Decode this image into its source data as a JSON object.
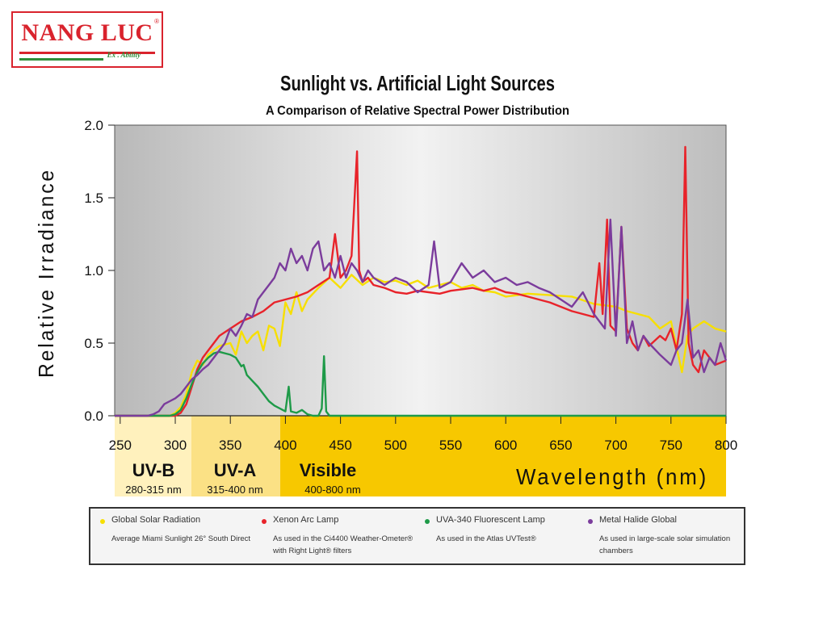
{
  "logo": {
    "brand": "NANG LUC",
    "tagline": "Ex . Ability",
    "registered": "®"
  },
  "chart_data": {
    "type": "line",
    "title": "Sunlight vs. Artificial Light Sources",
    "subtitle": "A Comparison of Relative Spectral Power Distribution",
    "xlabel": "Wavelength (nm)",
    "ylabel": "Relative Irradiance",
    "xlim": [
      245,
      800
    ],
    "ylim": [
      0,
      2.0
    ],
    "xticks": [
      250,
      300,
      350,
      400,
      450,
      500,
      550,
      600,
      650,
      700,
      750,
      800
    ],
    "yticks": [
      "0.0",
      "0.5",
      "1.0",
      "1.5",
      "2.0"
    ],
    "bands": [
      {
        "name": "UV-B",
        "range": "280-315 nm"
      },
      {
        "name": "UV-A",
        "range": "315-400 nm"
      },
      {
        "name": "Visible",
        "range": "400-800 nm"
      }
    ],
    "series": [
      {
        "name": "Global Solar Radiation",
        "color": "#f7df00",
        "x": [
          245,
          280,
          290,
          295,
          300,
          305,
          310,
          315,
          320,
          325,
          330,
          340,
          350,
          355,
          360,
          365,
          370,
          375,
          380,
          385,
          390,
          395,
          400,
          405,
          410,
          415,
          420,
          430,
          440,
          450,
          460,
          470,
          480,
          490,
          500,
          510,
          520,
          530,
          540,
          550,
          560,
          570,
          580,
          590,
          600,
          620,
          640,
          660,
          680,
          700,
          710,
          720,
          730,
          740,
          750,
          760,
          765,
          770,
          780,
          790,
          800
        ],
        "y": [
          0,
          0,
          0,
          0,
          0.02,
          0.06,
          0.15,
          0.3,
          0.38,
          0.35,
          0.42,
          0.48,
          0.5,
          0.42,
          0.58,
          0.5,
          0.55,
          0.58,
          0.45,
          0.62,
          0.6,
          0.48,
          0.78,
          0.7,
          0.85,
          0.72,
          0.8,
          0.88,
          0.95,
          0.88,
          0.97,
          0.9,
          0.95,
          0.92,
          0.93,
          0.9,
          0.93,
          0.88,
          0.9,
          0.92,
          0.88,
          0.9,
          0.86,
          0.85,
          0.82,
          0.84,
          0.83,
          0.82,
          0.77,
          0.75,
          0.72,
          0.7,
          0.68,
          0.6,
          0.65,
          0.3,
          0.55,
          0.6,
          0.65,
          0.6,
          0.58
        ]
      },
      {
        "name": "Xenon Arc Lamp",
        "color": "#e8232a",
        "x": [
          245,
          290,
          295,
          300,
          305,
          310,
          315,
          320,
          325,
          330,
          340,
          350,
          360,
          370,
          380,
          390,
          400,
          410,
          420,
          430,
          440,
          445,
          450,
          455,
          460,
          465,
          467,
          470,
          475,
          480,
          490,
          500,
          510,
          520,
          530,
          540,
          550,
          560,
          570,
          580,
          590,
          600,
          610,
          620,
          630,
          640,
          650,
          660,
          670,
          680,
          685,
          688,
          692,
          695,
          700,
          705,
          710,
          715,
          720,
          725,
          730,
          740,
          745,
          750,
          755,
          760,
          763,
          766,
          770,
          775,
          780,
          790,
          800
        ],
        "y": [
          0,
          0,
          0,
          0,
          0.02,
          0.08,
          0.2,
          0.32,
          0.4,
          0.45,
          0.55,
          0.6,
          0.65,
          0.68,
          0.72,
          0.78,
          0.8,
          0.82,
          0.85,
          0.9,
          0.95,
          1.25,
          0.95,
          1.0,
          1.1,
          1.82,
          1.0,
          0.92,
          0.95,
          0.9,
          0.88,
          0.85,
          0.84,
          0.86,
          0.85,
          0.84,
          0.86,
          0.87,
          0.88,
          0.86,
          0.88,
          0.85,
          0.84,
          0.82,
          0.8,
          0.78,
          0.75,
          0.72,
          0.7,
          0.68,
          1.05,
          0.7,
          1.35,
          0.62,
          0.58,
          1.3,
          0.6,
          0.5,
          0.45,
          0.55,
          0.48,
          0.55,
          0.52,
          0.6,
          0.45,
          0.7,
          1.85,
          0.5,
          0.35,
          0.3,
          0.45,
          0.35,
          0.38
        ]
      },
      {
        "name": "UVA-340 Fluorescent Lamp",
        "color": "#1e9a48",
        "x": [
          245,
          295,
          300,
          305,
          310,
          315,
          320,
          325,
          330,
          335,
          340,
          345,
          350,
          355,
          360,
          362,
          365,
          370,
          375,
          380,
          385,
          390,
          395,
          400,
          403,
          405,
          410,
          415,
          420,
          425,
          430,
          433,
          435,
          437,
          440,
          450,
          800
        ],
        "y": [
          0,
          0,
          0.01,
          0.04,
          0.12,
          0.22,
          0.3,
          0.36,
          0.4,
          0.43,
          0.44,
          0.43,
          0.42,
          0.4,
          0.34,
          0.35,
          0.28,
          0.24,
          0.2,
          0.15,
          0.1,
          0.07,
          0.05,
          0.03,
          0.2,
          0.03,
          0.02,
          0.04,
          0.01,
          0.0,
          0.0,
          0.05,
          0.41,
          0.03,
          0.0,
          0.0,
          0.0
        ]
      },
      {
        "name": "Metal Halide Global",
        "color": "#7b3c9c",
        "x": [
          245,
          275,
          280,
          285,
          290,
          295,
          300,
          305,
          310,
          315,
          320,
          325,
          330,
          335,
          340,
          345,
          350,
          355,
          360,
          365,
          370,
          375,
          380,
          385,
          390,
          395,
          400,
          405,
          410,
          415,
          420,
          425,
          430,
          435,
          440,
          445,
          450,
          455,
          460,
          465,
          470,
          475,
          480,
          490,
          500,
          510,
          520,
          530,
          535,
          540,
          550,
          560,
          570,
          580,
          590,
          600,
          610,
          620,
          630,
          640,
          650,
          660,
          670,
          680,
          690,
          695,
          700,
          705,
          710,
          715,
          720,
          725,
          730,
          740,
          750,
          755,
          760,
          765,
          770,
          775,
          780,
          785,
          790,
          795,
          800
        ],
        "y": [
          0,
          0,
          0.01,
          0.03,
          0.08,
          0.1,
          0.12,
          0.15,
          0.2,
          0.25,
          0.28,
          0.32,
          0.35,
          0.4,
          0.45,
          0.5,
          0.6,
          0.55,
          0.62,
          0.7,
          0.68,
          0.8,
          0.85,
          0.9,
          0.95,
          1.05,
          1.0,
          1.15,
          1.05,
          1.1,
          1.0,
          1.15,
          1.2,
          1.0,
          1.05,
          0.95,
          1.1,
          0.95,
          1.05,
          1.0,
          0.92,
          1.0,
          0.95,
          0.9,
          0.95,
          0.92,
          0.85,
          0.9,
          1.2,
          0.88,
          0.92,
          1.05,
          0.95,
          1.0,
          0.92,
          0.95,
          0.9,
          0.92,
          0.88,
          0.85,
          0.8,
          0.75,
          0.85,
          0.7,
          0.6,
          1.35,
          0.55,
          1.3,
          0.5,
          0.65,
          0.45,
          0.55,
          0.5,
          0.42,
          0.35,
          0.45,
          0.5,
          0.8,
          0.4,
          0.45,
          0.3,
          0.4,
          0.35,
          0.5,
          0.38
        ]
      }
    ]
  },
  "legend": {
    "items": [
      {
        "name": "Global Solar Radiation",
        "desc": "Average Miami Sunlight 26° South Direct",
        "color": "#f7df00"
      },
      {
        "name": "Xenon Arc Lamp",
        "desc": "As used in the Ci4400 Weather-Ometer® with Right Light® filters",
        "color": "#e8232a"
      },
      {
        "name": "UVA-340 Fluorescent Lamp",
        "desc": "As used in the Atlas UVTest®",
        "color": "#1e9a48"
      },
      {
        "name": "Metal Halide Global",
        "desc": "As used in large-scale solar simulation chambers",
        "color": "#7b3c9c"
      }
    ]
  }
}
